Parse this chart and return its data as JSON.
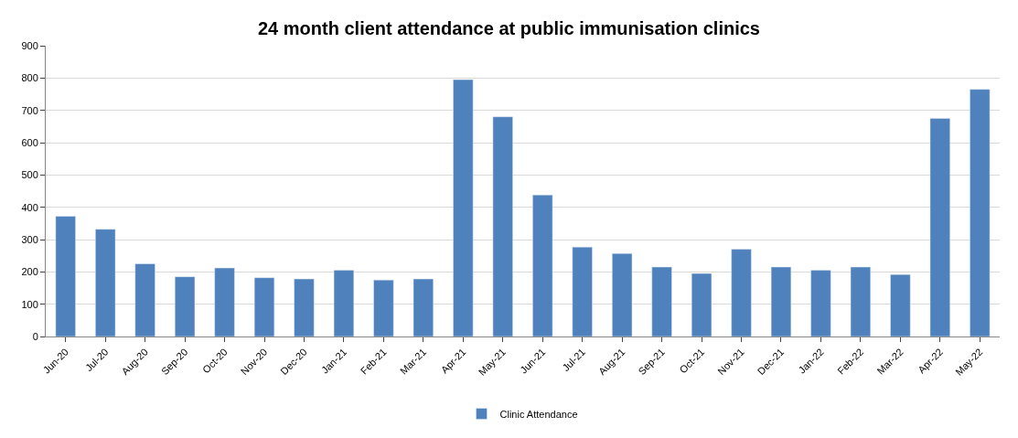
{
  "chart_data": {
    "type": "bar",
    "title": "24 month client attendance at public immunisation clinics",
    "categories": [
      "Jun-20",
      "Jul-20",
      "Aug-20",
      "Sep-20",
      "Oct-20",
      "Nov-20",
      "Dec-20",
      "Jan-21",
      "Feb-21",
      "Mar-21",
      "Apr-21",
      "May-21",
      "Jun-21",
      "Jul-21",
      "Aug-21",
      "Sep-21",
      "Oct-21",
      "Nov-21",
      "Dec-21",
      "Jan-22",
      "Feb-22",
      "Mar-22",
      "Apr-22",
      "May-22"
    ],
    "series": [
      {
        "name": "Clinic Attendance",
        "color": "#4f81bd",
        "values": [
          372,
          332,
          225,
          185,
          212,
          182,
          178,
          205,
          175,
          178,
          795,
          680,
          438,
          277,
          257,
          215,
          195,
          270,
          215,
          205,
          215,
          192,
          675,
          765
        ]
      }
    ],
    "ylim": [
      0,
      900
    ],
    "yticks": [
      0,
      100,
      200,
      300,
      400,
      500,
      600,
      700,
      800,
      900
    ],
    "grid": "y",
    "legend": "bottom"
  }
}
